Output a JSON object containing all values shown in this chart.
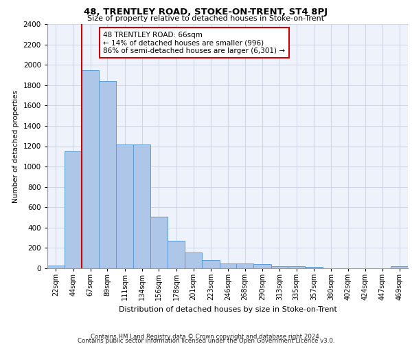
{
  "title": "48, TRENTLEY ROAD, STOKE-ON-TRENT, ST4 8PJ",
  "subtitle": "Size of property relative to detached houses in Stoke-on-Trent",
  "xlabel": "Distribution of detached houses by size in Stoke-on-Trent",
  "ylabel": "Number of detached properties",
  "footer_line1": "Contains HM Land Registry data © Crown copyright and database right 2024.",
  "footer_line2": "Contains public sector information licensed under the Open Government Licence v3.0.",
  "annotation_title": "48 TRENTLEY ROAD: 66sqm",
  "annotation_line1": "← 14% of detached houses are smaller (996)",
  "annotation_line2": "86% of semi-detached houses are larger (6,301) →",
  "categories": [
    "22sqm",
    "44sqm",
    "67sqm",
    "89sqm",
    "111sqm",
    "134sqm",
    "156sqm",
    "178sqm",
    "201sqm",
    "223sqm",
    "246sqm",
    "268sqm",
    "290sqm",
    "313sqm",
    "335sqm",
    "357sqm",
    "380sqm",
    "402sqm",
    "424sqm",
    "447sqm",
    "469sqm"
  ],
  "bin_edges": [
    22,
    44,
    67,
    89,
    111,
    134,
    156,
    178,
    201,
    223,
    246,
    268,
    290,
    313,
    335,
    357,
    380,
    402,
    424,
    447,
    469,
    491
  ],
  "values": [
    30,
    1150,
    1950,
    1840,
    1220,
    1220,
    510,
    270,
    155,
    80,
    50,
    45,
    40,
    20,
    20,
    15,
    0,
    0,
    0,
    0,
    20
  ],
  "bar_color": "#aec6e8",
  "bar_edge_color": "#5b9bd5",
  "vline_color": "#cc0000",
  "vline_x": 67,
  "annotation_box_color": "#cc0000",
  "background_color": "#eef2fb",
  "grid_color": "#c8d0e0",
  "ylim": [
    0,
    2400
  ],
  "yticks": [
    0,
    200,
    400,
    600,
    800,
    1000,
    1200,
    1400,
    1600,
    1800,
    2000,
    2200,
    2400
  ]
}
